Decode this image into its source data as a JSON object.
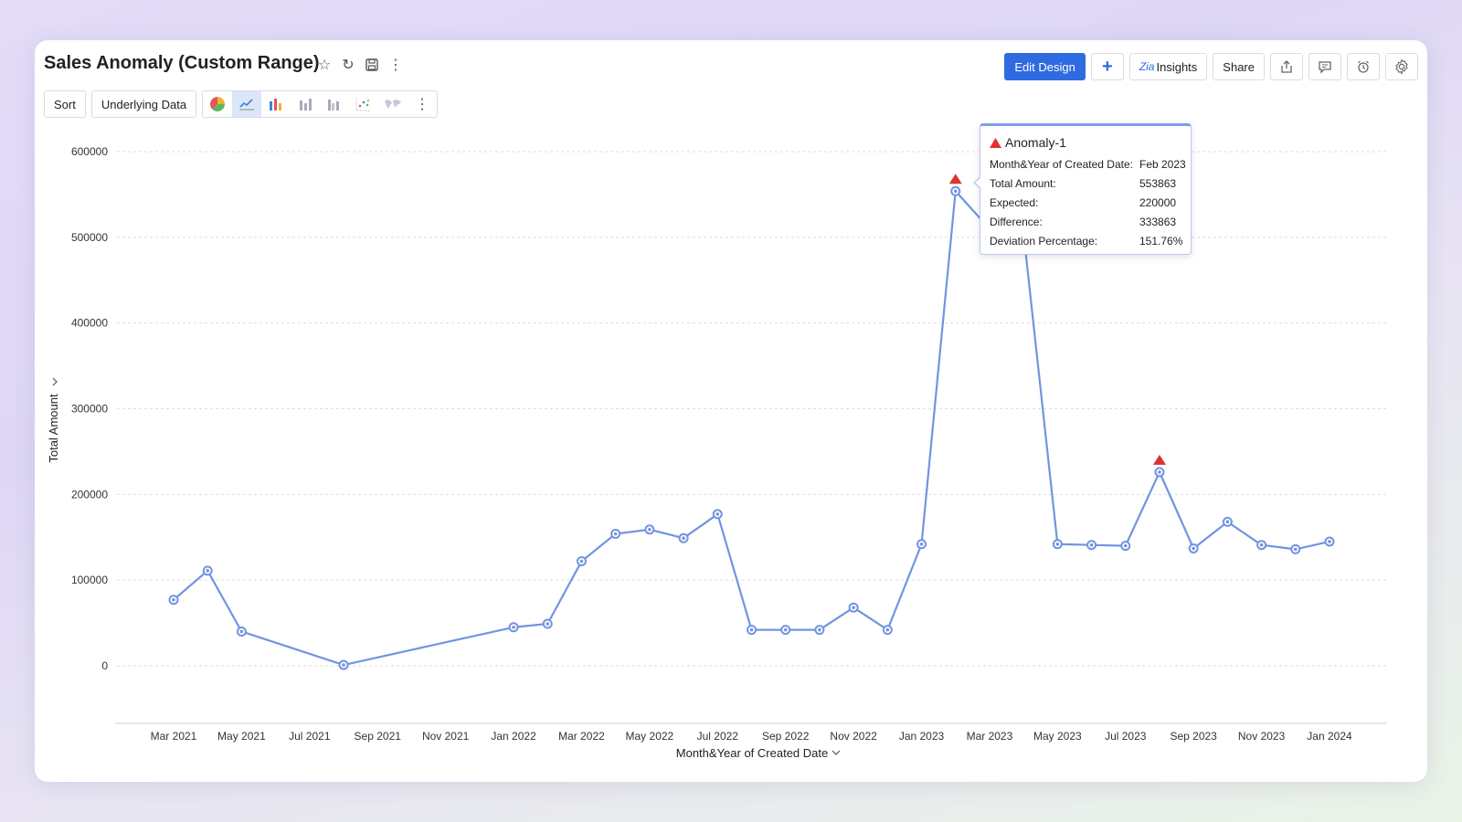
{
  "header": {
    "title": "Sales Anomaly (Custom Range)",
    "title_icons": [
      "star-icon",
      "refresh-icon",
      "save-icon",
      "more-vertical-icon"
    ]
  },
  "toolbar": {
    "edit_design": "Edit Design",
    "insights": "Insights",
    "share": "Share",
    "accent_color": "#2f6be0"
  },
  "chart_toolbar": {
    "sort": "Sort",
    "underlying_data": "Underlying Data",
    "chart_type_icons": [
      "pie-chart-icon",
      "line-chart-icon",
      "bar-chart-icon",
      "stacked-bar-icon",
      "grouped-bar-icon",
      "scatter-chart-icon",
      "map-chart-icon",
      "more-vertical-icon"
    ],
    "active_type": "line-chart-icon"
  },
  "tooltip": {
    "title": "Anomaly-1",
    "rows": [
      {
        "label": "Month&Year of Created Date:",
        "value": "Feb 2023"
      },
      {
        "label": "Total Amount:",
        "value": "553863"
      },
      {
        "label": "Expected:",
        "value": "220000"
      },
      {
        "label": "Difference:",
        "value": "333863"
      },
      {
        "label": "Deviation Percentage:",
        "value": "151.76%"
      }
    ]
  },
  "chart_data": {
    "type": "line",
    "xlabel": "Month&Year of Created Date",
    "ylabel": "Total Amount",
    "ylim": [
      0,
      600000
    ],
    "y_ticks": [
      0,
      100000,
      200000,
      300000,
      400000,
      500000,
      600000
    ],
    "x_tick_labels": [
      "Mar 2021",
      "May 2021",
      "Jul 2021",
      "Sep 2021",
      "Nov 2021",
      "Jan 2022",
      "Mar 2022",
      "May 2022",
      "Jul 2022",
      "Sep 2022",
      "Nov 2022",
      "Jan 2023",
      "Mar 2023",
      "May 2023",
      "Jul 2023",
      "Sep 2023",
      "Nov 2023",
      "Jan 2024"
    ],
    "grid": true,
    "line_color": "#7294e0",
    "anomaly_color": "#e03131",
    "points": [
      {
        "x": "Mar 2021",
        "y": 77000
      },
      {
        "x": "Apr 2021",
        "y": 111000
      },
      {
        "x": "May 2021",
        "y": 40000
      },
      {
        "x": "Aug 2021",
        "y": 1000
      },
      {
        "x": "Jan 2022",
        "y": 45000
      },
      {
        "x": "Feb 2022",
        "y": 49000
      },
      {
        "x": "Mar 2022",
        "y": 122000
      },
      {
        "x": "Apr 2022",
        "y": 154000
      },
      {
        "x": "May 2022",
        "y": 159000
      },
      {
        "x": "Jun 2022",
        "y": 149000
      },
      {
        "x": "Jul 2022",
        "y": 177000
      },
      {
        "x": "Aug 2022",
        "y": 42000
      },
      {
        "x": "Sep 2022",
        "y": 42000
      },
      {
        "x": "Oct 2022",
        "y": 42000
      },
      {
        "x": "Nov 2022",
        "y": 68000
      },
      {
        "x": "Dec 2022",
        "y": 42000
      },
      {
        "x": "Jan 2023",
        "y": 142000
      },
      {
        "x": "Feb 2023",
        "y": 553863,
        "anomaly": true
      },
      {
        "x": "Mar 2023",
        "y": 510000
      },
      {
        "x": "Apr 2023",
        "y": 505000
      },
      {
        "x": "May 2023",
        "y": 142000
      },
      {
        "x": "Jun 2023",
        "y": 141000
      },
      {
        "x": "Jul 2023",
        "y": 140000
      },
      {
        "x": "Aug 2023",
        "y": 226000,
        "anomaly": true
      },
      {
        "x": "Sep 2023",
        "y": 137000
      },
      {
        "x": "Oct 2023",
        "y": 168000
      },
      {
        "x": "Nov 2023",
        "y": 141000
      },
      {
        "x": "Dec 2023",
        "y": 136000
      },
      {
        "x": "Jan 2024",
        "y": 145000
      }
    ]
  }
}
